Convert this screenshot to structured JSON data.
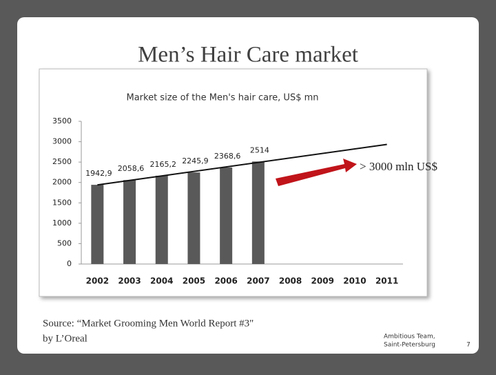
{
  "title": "Men’s Hair Care market",
  "chart_data": {
    "type": "bar",
    "title": "Market size of the Men's hair care, US$ mn",
    "categories": [
      "2002",
      "2003",
      "2004",
      "2005",
      "2006",
      "2007",
      "2008",
      "2009",
      "2010",
      "2011"
    ],
    "values": [
      1942.9,
      2058.6,
      2165.2,
      2245.9,
      2368.6,
      2514,
      null,
      null,
      null,
      null
    ],
    "value_labels": [
      "1942,9",
      "2058,6",
      "2165,2",
      "2245,9",
      "2368,6",
      "2514",
      null,
      null,
      null,
      null
    ],
    "color": "#595959",
    "ylim": [
      0,
      3500
    ],
    "yticks": [
      0,
      500,
      1000,
      1500,
      2000,
      2500,
      3000,
      3500
    ],
    "trendline": true,
    "annotation": "> 3000 mln US$"
  },
  "source": [
    "Source: “Market Grooming Men World Report #3\"",
    "by L’Oreal"
  ],
  "footer": [
    "Ambitious Team,",
    "Saint-Petersburg"
  ],
  "page_number": "7"
}
